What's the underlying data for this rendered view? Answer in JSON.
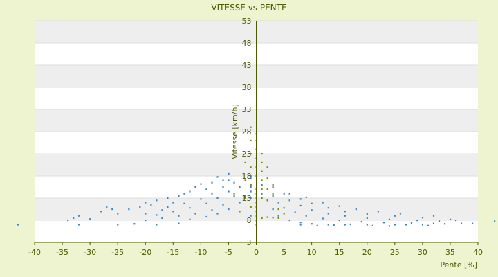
{
  "chart_data": {
    "type": "scatter",
    "title": "VITESSE vs PENTE",
    "xlabel": "Pente [%]",
    "ylabel": "Vitesse [km/h]",
    "xlim": [
      -40,
      40
    ],
    "ylim": [
      3,
      53
    ],
    "x_ticks": [
      "-40",
      "-35",
      "-30",
      "-25",
      "-20",
      "-15",
      "-10",
      "-5",
      "0",
      "5",
      "10",
      "15",
      "20",
      "25",
      "30",
      "35",
      "40"
    ],
    "y_ticks": [
      "3",
      "8",
      "13",
      "18",
      "23",
      "28",
      "33",
      "38",
      "43",
      "48",
      "53"
    ],
    "grid": "alternating horizontal bands",
    "legend": "none",
    "colors": {
      "series_blue": "#3a86c8",
      "series_olive": "#7a8a00",
      "band": "#eeeeee"
    },
    "series": [
      {
        "color": "#3a86c8",
        "points": [
          [
            -43,
            7.0
          ],
          [
            -34,
            8.0
          ],
          [
            -33,
            8.5
          ],
          [
            -32,
            9.0
          ],
          [
            -32,
            7.0
          ],
          [
            -30,
            8.3
          ],
          [
            -28,
            10.0
          ],
          [
            -27,
            11.0
          ],
          [
            -26,
            10.5
          ],
          [
            -25,
            9.5
          ],
          [
            -25,
            7.0
          ],
          [
            -23,
            10.5
          ],
          [
            -22,
            7.2
          ],
          [
            -21,
            11.0
          ],
          [
            -20,
            12.0
          ],
          [
            -20,
            9.5
          ],
          [
            -19,
            11.5
          ],
          [
            -18,
            12.5
          ],
          [
            -18,
            7.0
          ],
          [
            -17,
            10.3
          ],
          [
            -16,
            13.0
          ],
          [
            -15,
            12.0
          ],
          [
            -14,
            13.5
          ],
          [
            -14,
            7.3
          ],
          [
            -13,
            14.0
          ],
          [
            -12,
            14.5
          ],
          [
            -11,
            15.5
          ],
          [
            -10,
            16.2
          ],
          [
            -9,
            15.0
          ],
          [
            -8,
            16.5
          ],
          [
            -7,
            17.8
          ],
          [
            -6,
            17.0
          ],
          [
            -5,
            18.5
          ],
          [
            -20,
            8.0
          ],
          [
            -17,
            8.5
          ],
          [
            -14,
            9.0
          ],
          [
            -11,
            9.5
          ],
          [
            -8,
            10.3
          ],
          [
            -6,
            11.5
          ],
          [
            -4,
            13.5
          ],
          [
            -3,
            15.5
          ],
          [
            -2,
            17.0
          ],
          [
            -18,
            9.2
          ],
          [
            -15,
            10.0
          ],
          [
            -12,
            10.8
          ],
          [
            -9,
            11.8
          ],
          [
            -7,
            13.0
          ],
          [
            -5,
            14.5
          ],
          [
            -4,
            16.5
          ],
          [
            -16,
            11.0
          ],
          [
            -13,
            11.8
          ],
          [
            -10,
            12.8
          ],
          [
            -8,
            14.0
          ],
          [
            -6,
            15.5
          ],
          [
            -5,
            17.0
          ],
          [
            -12,
            8.2
          ],
          [
            -9,
            8.8
          ],
          [
            -7,
            9.5
          ],
          [
            -5,
            10.5
          ],
          [
            -3,
            12.0
          ],
          [
            -2,
            13.5
          ],
          [
            -1,
            15.5
          ],
          [
            -1,
            9.0
          ],
          [
            -1,
            11.0
          ],
          [
            -1,
            13.0
          ],
          [
            -1,
            14.5
          ],
          [
            -1,
            16.0
          ],
          [
            -1,
            17.5
          ],
          [
            -1,
            18.0
          ],
          [
            0,
            7.0
          ],
          [
            0,
            8.0
          ],
          [
            0,
            9.0
          ],
          [
            0,
            10.0
          ],
          [
            0,
            11.0
          ],
          [
            0,
            12.0
          ],
          [
            0,
            13.0
          ],
          [
            0,
            14.0
          ],
          [
            0,
            15.0
          ],
          [
            1,
            16.0
          ],
          [
            1,
            14.0
          ],
          [
            2,
            12.5
          ],
          [
            3,
            10.5
          ],
          [
            4,
            9.0
          ],
          [
            6,
            8.0
          ],
          [
            8,
            7.5
          ],
          [
            10,
            7.2
          ],
          [
            13,
            7.0
          ],
          [
            16,
            7.0
          ],
          [
            20,
            7.0
          ],
          [
            25,
            7.0
          ],
          [
            30,
            7.0
          ],
          [
            2,
            15.0
          ],
          [
            3,
            13.5
          ],
          [
            4,
            12.0
          ],
          [
            5,
            10.8
          ],
          [
            7,
            9.8
          ],
          [
            9,
            9.0
          ],
          [
            12,
            8.4
          ],
          [
            15,
            8.0
          ],
          [
            19,
            7.7
          ],
          [
            23,
            7.5
          ],
          [
            28,
            7.4
          ],
          [
            32,
            7.3
          ],
          [
            3,
            15.5
          ],
          [
            5,
            14.0
          ],
          [
            6,
            12.5
          ],
          [
            8,
            11.3
          ],
          [
            10,
            10.3
          ],
          [
            13,
            9.5
          ],
          [
            16,
            9.0
          ],
          [
            20,
            8.5
          ],
          [
            24,
            8.2
          ],
          [
            29,
            8.0
          ],
          [
            33,
            7.8
          ],
          [
            6,
            14.0
          ],
          [
            8,
            12.8
          ],
          [
            10,
            11.8
          ],
          [
            13,
            10.8
          ],
          [
            16,
            10.0
          ],
          [
            20,
            9.4
          ],
          [
            25,
            9.0
          ],
          [
            30,
            8.6
          ],
          [
            35,
            8.2
          ],
          [
            9,
            13.2
          ],
          [
            12,
            12.0
          ],
          [
            15,
            11.2
          ],
          [
            18,
            10.5
          ],
          [
            22,
            10.0
          ],
          [
            26,
            9.5
          ],
          [
            32,
            9.0
          ],
          [
            36,
            8.0
          ],
          [
            39,
            7.3
          ],
          [
            43,
            7.8
          ],
          [
            8,
            7.0
          ],
          [
            11,
            6.8
          ],
          [
            14,
            6.9
          ],
          [
            17,
            7.1
          ],
          [
            21,
            6.8
          ],
          [
            24,
            6.7
          ],
          [
            27,
            7.0
          ],
          [
            31,
            6.8
          ],
          [
            34,
            7.2
          ],
          [
            37,
            7.3
          ]
        ]
      },
      {
        "color": "#7a8a00",
        "points": [
          [
            -4,
            14.0
          ],
          [
            -3,
            10.0
          ],
          [
            -2,
            13.0
          ],
          [
            -2,
            17.0
          ],
          [
            -2,
            21.0
          ],
          [
            -1,
            11.0
          ],
          [
            -1,
            16.0
          ],
          [
            -1,
            20.0
          ],
          [
            -1,
            23.0
          ],
          [
            -1,
            26.0
          ],
          [
            -1,
            29.0
          ],
          [
            0,
            12.0
          ],
          [
            0,
            15.0
          ],
          [
            0,
            18.0
          ],
          [
            0,
            20.0
          ],
          [
            0,
            22.0
          ],
          [
            0,
            24.0
          ],
          [
            0,
            26.0
          ],
          [
            0,
            27.5
          ],
          [
            1,
            13.0
          ],
          [
            1,
            15.0
          ],
          [
            1,
            17.0
          ],
          [
            1,
            19.0
          ],
          [
            1,
            21.0
          ],
          [
            1,
            23.0
          ],
          [
            2,
            12.5
          ],
          [
            2,
            15.0
          ],
          [
            2,
            17.5
          ],
          [
            2,
            20.0
          ],
          [
            3,
            14.0
          ],
          [
            3,
            16.0
          ],
          [
            4,
            10.5
          ],
          [
            5,
            9.5
          ],
          [
            1,
            8.5
          ],
          [
            2,
            8.7
          ],
          [
            3,
            8.6
          ],
          [
            4,
            8.5
          ]
        ]
      }
    ]
  }
}
